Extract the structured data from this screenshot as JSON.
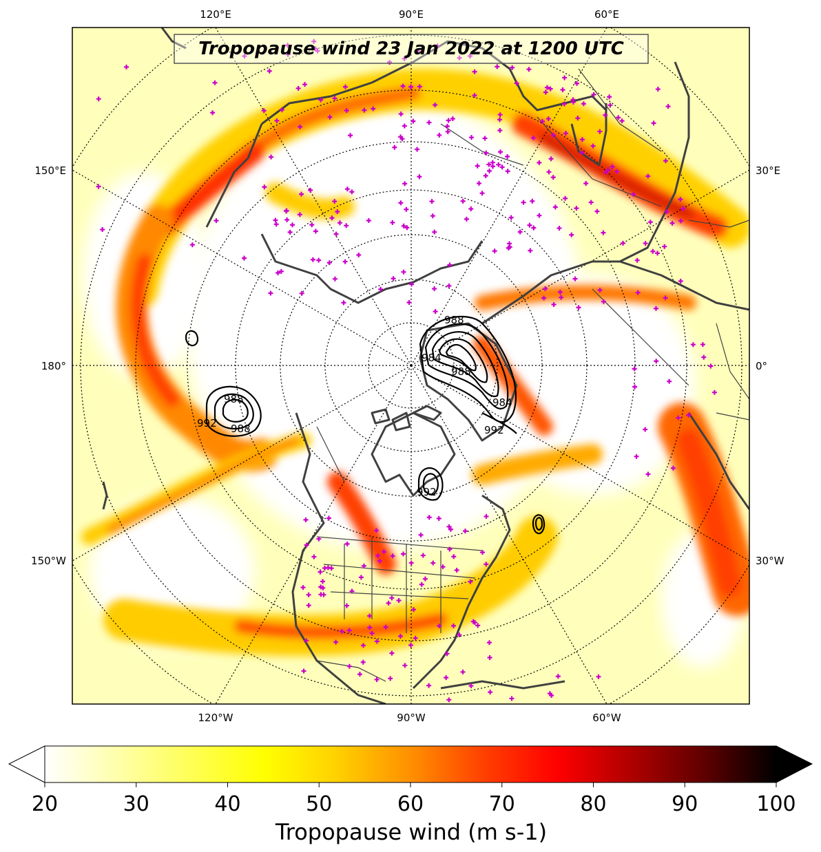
{
  "title": "Tropopause wind 23 Jan 2022 at 1200 UTC",
  "map": {
    "projection": "north-polar-stereographic",
    "central_longitude": -90,
    "top_longitude_labels": [
      "120°E",
      "90°E",
      "60°E"
    ],
    "bottom_longitude_labels": [
      "120°W",
      "90°W",
      "60°W"
    ],
    "left_longitude_labels": [
      "150°E",
      "180°",
      "150°W"
    ],
    "right_longitude_labels": [
      "30°E",
      "0°",
      "30°W"
    ],
    "gridlines": "dotted",
    "station_marker": "+",
    "station_color": "#cc00cc",
    "coastline_color": "#404040"
  },
  "pressure_contours": {
    "units": "hPa",
    "labels": [
      "988",
      "988",
      "984",
      "984",
      "992",
      "988",
      "988",
      "992",
      "992"
    ],
    "color": "#000000"
  },
  "colorbar": {
    "label": "Tropopause wind (m s-1)",
    "min": 20,
    "max": 100,
    "ticks": [
      "20",
      "30",
      "40",
      "50",
      "60",
      "70",
      "80",
      "90",
      "100"
    ],
    "colormap": "hot_r",
    "stops": [
      "#ffffff",
      "#ffff99",
      "#ffff00",
      "#ffd000",
      "#ff9000",
      "#ff4000",
      "#ff0000",
      "#b00000",
      "#600000",
      "#000000"
    ]
  }
}
